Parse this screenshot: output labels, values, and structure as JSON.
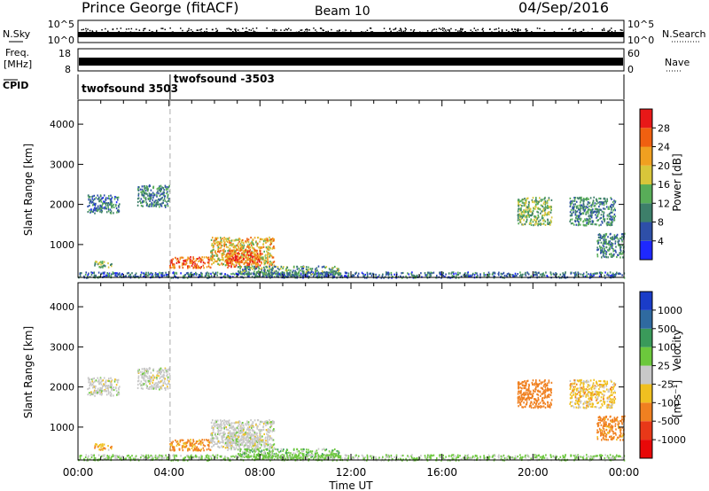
{
  "header": {
    "station": "Prince George (fitACF)",
    "beam": "Beam 10",
    "date": "04/Sep/2016"
  },
  "chart_data": {
    "type": "heatmap",
    "x_axis": {
      "label": "Time UT",
      "ticks": [
        "00:00",
        "04:00",
        "08:00",
        "12:00",
        "16:00",
        "20:00",
        "00:00"
      ],
      "range_hours": [
        0,
        24
      ]
    },
    "top_panels": {
      "nsky": {
        "label": "N.Sky",
        "ticks": [
          "10^5",
          "10^0"
        ]
      },
      "nsearch": {
        "label": "N.Search",
        "ticks": [
          "10^5",
          "10^0"
        ]
      },
      "freq": {
        "label": "Freq.",
        "unit": "[MHz]",
        "ticks": [
          "18",
          "8"
        ]
      },
      "nave": {
        "label": "Nave",
        "ticks": [
          "60",
          "0"
        ]
      },
      "cpid": {
        "label": "CPID",
        "segments": [
          {
            "name": "twofsound 3503",
            "start_hour": 0.0
          },
          {
            "name": "twofsound -3503",
            "start_hour": 4.05
          }
        ]
      }
    },
    "power_panel": {
      "ylabel": "Slant Range [km]",
      "yticks": [
        "1000",
        "2000",
        "3000",
        "4000"
      ],
      "ylim": [
        180,
        4600
      ],
      "colorbar_title": "Power [dB]",
      "colorbar_labels": [
        "4",
        "8",
        "12",
        "16",
        "20",
        "24",
        "28"
      ],
      "colors": [
        "#1e28ff",
        "#2e4fa8",
        "#3d7f6a",
        "#58ad58",
        "#d8c63a",
        "#f0a020",
        "#f06010",
        "#e81818"
      ]
    },
    "velocity_panel": {
      "ylabel": "Slant Range [km]",
      "yticks": [
        "1000",
        "2000",
        "3000",
        "4000"
      ],
      "ylim": [
        180,
        4600
      ],
      "colorbar_title": "Velocity",
      "colorbar_unit": "[m s⁻¹]",
      "colorbar_labels": [
        "1000",
        "500",
        "100",
        "25",
        "-25",
        "-100",
        "-500",
        "-1000"
      ],
      "colors": [
        "#1a3cc8",
        "#2f6aa0",
        "#3a9a5a",
        "#6cc83c",
        "#c8c8c8",
        "#f0c020",
        "#f08020",
        "#e83818",
        "#e80808"
      ],
      "ground_scatter_color": "#c8c8c8"
    },
    "scatter_regions": [
      {
        "t": [
          0.4,
          1.8
        ],
        "r": [
          1800,
          2250
        ],
        "power": 9,
        "vel": 0
      },
      {
        "t": [
          0.7,
          1.5
        ],
        "r": [
          450,
          600
        ],
        "power": 14,
        "vel": -80
      },
      {
        "t": [
          2.6,
          4.0
        ],
        "r": [
          1950,
          2500
        ],
        "power": 10,
        "vel": 0
      },
      {
        "t": [
          4.0,
          5.8
        ],
        "r": [
          430,
          720
        ],
        "power": 26,
        "vel": -150
      },
      {
        "t": [
          5.8,
          8.6
        ],
        "r": [
          500,
          1200
        ],
        "power": 20,
        "vel": 0
      },
      {
        "t": [
          6.5,
          8.0
        ],
        "r": [
          450,
          900
        ],
        "power": 26,
        "vel": 0
      },
      {
        "t": [
          7.0,
          11.5
        ],
        "r": [
          250,
          480
        ],
        "power": 12,
        "vel": 60
      },
      {
        "t": [
          0.0,
          24.0
        ],
        "r": [
          190,
          330
        ],
        "power": 8,
        "vel": 40
      },
      {
        "t": [
          19.3,
          20.8
        ],
        "r": [
          1500,
          2200
        ],
        "power": 14,
        "vel": -300
      },
      {
        "t": [
          21.6,
          23.6
        ],
        "r": [
          1500,
          2200
        ],
        "power": 10,
        "vel": -60
      },
      {
        "t": [
          22.8,
          24.0
        ],
        "r": [
          700,
          1300
        ],
        "power": 10,
        "vel": -200
      }
    ]
  }
}
